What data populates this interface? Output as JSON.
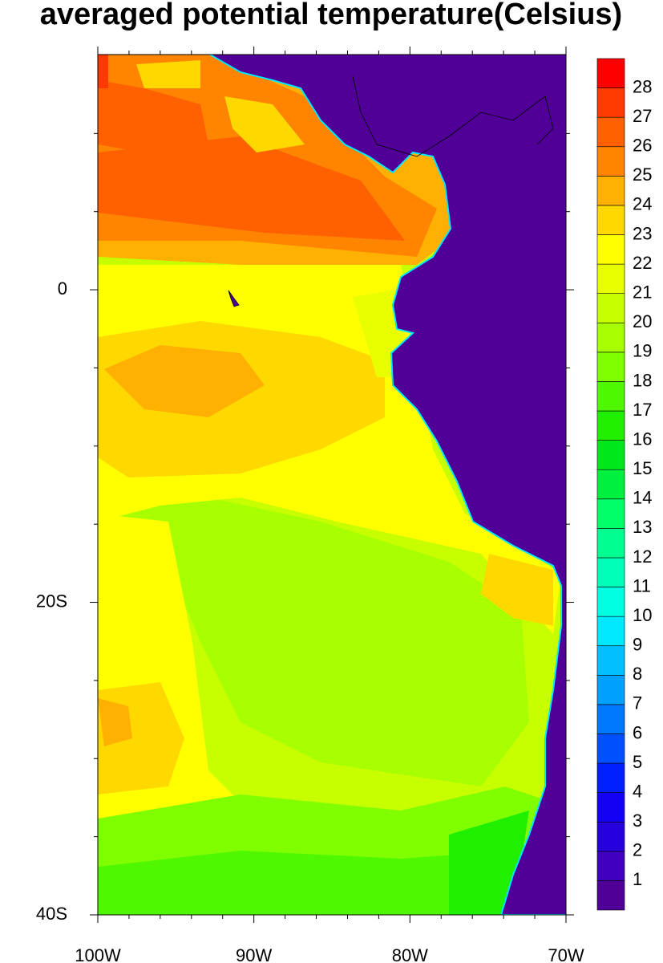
{
  "chart_data": {
    "type": "contour-map",
    "title": "averaged potential temperature(Celsius)",
    "xlim": [
      -100,
      -70
    ],
    "ylim": [
      -40,
      15.05
    ],
    "xticks": [
      {
        "value": -100,
        "label": "100W"
      },
      {
        "value": -90,
        "label": "90W"
      },
      {
        "value": -80,
        "label": "80W"
      },
      {
        "value": -70,
        "label": "70W"
      }
    ],
    "xminorticks": [
      -98,
      -96,
      -94,
      -92,
      -88,
      -86,
      -84,
      -82,
      -78,
      -76,
      -74,
      -72
    ],
    "yticks": [
      {
        "value": 0,
        "label": "0"
      },
      {
        "value": -20,
        "label": "20S"
      },
      {
        "value": -40,
        "label": "40S"
      }
    ],
    "yminorticks": [
      10,
      5,
      -5,
      -10,
      -15,
      -25,
      -30,
      -35
    ],
    "levels": [
      1,
      2,
      3,
      4,
      5,
      6,
      7,
      8,
      9,
      10,
      11,
      12,
      13,
      14,
      15,
      16,
      17,
      18,
      19,
      20,
      21,
      22,
      23,
      24,
      25,
      26,
      27,
      28
    ],
    "colors": [
      "#500096",
      "#3f00c0",
      "#2800dd",
      "#1400f5",
      "#0020ff",
      "#0050ff",
      "#0078ff",
      "#00a0ff",
      "#00c0ff",
      "#00e8ff",
      "#00ffe0",
      "#00ffb8",
      "#00ff90",
      "#00ff68",
      "#00f040",
      "#00e81c",
      "#20f000",
      "#50f800",
      "#80ff00",
      "#a8ff00",
      "#c8ff00",
      "#e8ff00",
      "#ffff00",
      "#ffd800",
      "#ffb000",
      "#ff8400",
      "#ff6000",
      "#ff3a00",
      "#ff0000"
    ]
  }
}
